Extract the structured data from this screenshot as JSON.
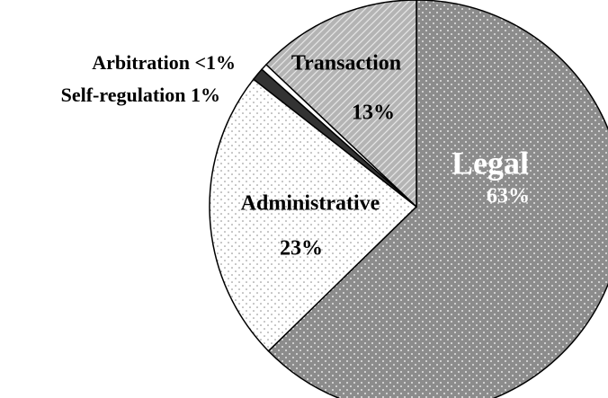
{
  "chart_data": {
    "type": "pie",
    "categories": [
      "Legal",
      "Administrative",
      "Self-regulation",
      "Arbitration",
      "Transaction"
    ],
    "values": [
      63,
      23,
      1,
      0.5,
      13
    ],
    "value_labels": [
      "63%",
      "23%",
      "1%",
      "<1%",
      "13%"
    ],
    "colors": [
      "#8c8c8c",
      "#ffffff",
      "#333333",
      "#ffffff",
      "#b4b4b4"
    ]
  }
}
